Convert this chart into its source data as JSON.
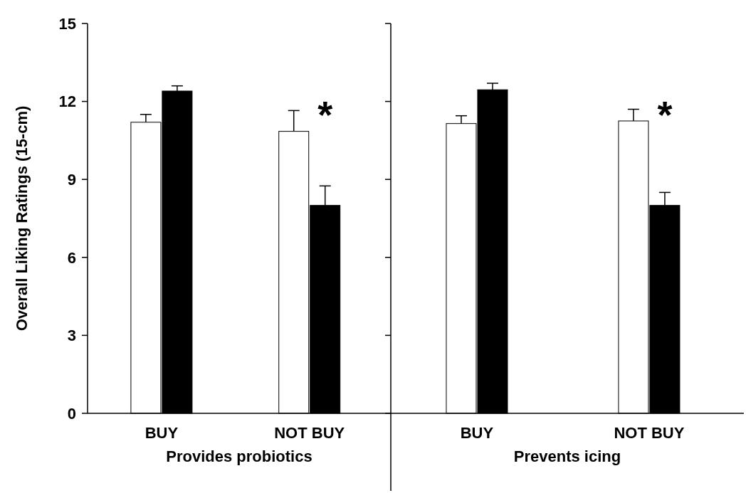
{
  "chart_data": [
    {
      "type": "bar",
      "categories": [
        "BUY",
        "NOT BUY"
      ],
      "xlabel": "Provides probiotics",
      "ylabel": "Overall Liking Ratings (15-cm)",
      "ylim": [
        0,
        15
      ],
      "yticks": [
        0,
        3,
        6,
        9,
        12,
        15
      ],
      "grid": false,
      "series": [
        {
          "color": "#ffffff",
          "values": [
            11.2,
            10.85
          ],
          "errors": [
            [
              11.2,
              11.5
            ],
            [
              10.85,
              11.65
            ]
          ]
        },
        {
          "color": "#000000",
          "values": [
            12.4,
            8.0
          ],
          "errors": [
            [
              12.4,
              12.6
            ],
            [
              8.0,
              8.75
            ]
          ]
        }
      ],
      "annotations": [
        "*"
      ]
    },
    {
      "type": "bar",
      "categories": [
        "BUY",
        "NOT BUY"
      ],
      "xlabel": "Prevents icing",
      "ylim": [
        0,
        15
      ],
      "yticks": [
        0,
        3,
        6,
        9,
        12,
        15
      ],
      "tick_labels": "x",
      "grid": false,
      "series": [
        {
          "color": "#ffffff",
          "values": [
            11.15,
            11.25
          ],
          "errors": [
            [
              11.15,
              11.45
            ],
            [
              11.25,
              11.7
            ]
          ]
        },
        {
          "color": "#000000",
          "values": [
            12.45,
            8.0
          ],
          "errors": [
            [
              12.45,
              12.7
            ],
            [
              8.0,
              8.5
            ]
          ]
        }
      ],
      "annotations": [
        "*"
      ]
    }
  ]
}
